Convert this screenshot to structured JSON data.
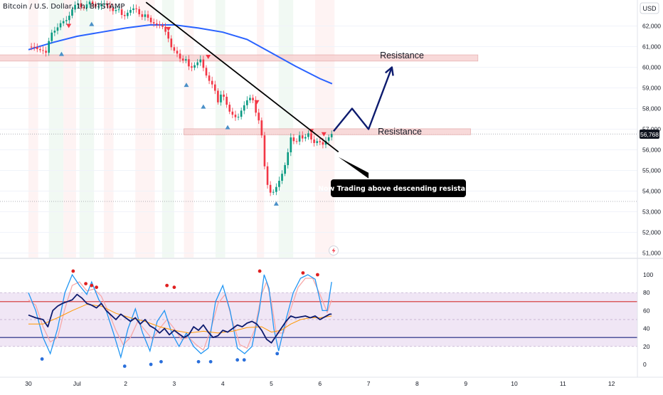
{
  "header": {
    "symbol_title": "Bitcoin / U.S. Dollar, 1h, BITSTAMP",
    "currency": "USD"
  },
  "annotations": {
    "resistance_upper": "Resistance",
    "resistance_lower": "Resistance",
    "callout": "Now Trading above descending resistance"
  },
  "colors": {
    "bull_candle": "#089981",
    "bear_candle": "#f23645",
    "ma_line": "#2962ff",
    "trendline": "#000000",
    "projection": "#0d1b6e",
    "zone_fill": "#f7d3d3",
    "rsi_line": "#0d1b6e",
    "rsi_ma": "#ff9800",
    "stoch_k": "#2196f3",
    "stoch_d": "#f7a8a8",
    "overbought_line": "#d32f2f",
    "oversold_line": "#1a237e",
    "band_fill": "#ece0f2",
    "price_label_bg": "#131722"
  },
  "chart_data": [
    {
      "type": "candlestick",
      "x_axis": {
        "tick_labels": [
          "30",
          "Jul",
          "2",
          "3",
          "4",
          "5",
          "6",
          "7",
          "8",
          "9",
          "10",
          "11",
          "12"
        ]
      },
      "y_axis": {
        "tick_labels": [
          "62,000",
          "61,000",
          "60,000",
          "59,000",
          "58,000",
          "57,000",
          "56,000",
          "55,000",
          "54,000",
          "53,000",
          "52,000",
          "51,000"
        ],
        "ylim": [
          50600,
          63300
        ]
      },
      "last_price": 56768,
      "last_price_label": "56,768",
      "close_path": [
        [
          0,
          61000
        ],
        [
          0.12,
          60980
        ],
        [
          0.2,
          60850
        ],
        [
          0.3,
          60800
        ],
        [
          0.36,
          60700
        ],
        [
          0.46,
          61650
        ],
        [
          0.56,
          61800
        ],
        [
          0.68,
          62200
        ],
        [
          0.8,
          62300
        ],
        [
          0.92,
          62900
        ],
        [
          1.0,
          63150
        ],
        [
          1.12,
          62800
        ],
        [
          1.25,
          63200
        ],
        [
          1.4,
          62900
        ],
        [
          1.55,
          63100
        ],
        [
          1.65,
          62950
        ],
        [
          1.75,
          62700
        ],
        [
          1.85,
          62850
        ],
        [
          1.95,
          62400
        ],
        [
          2.08,
          62750
        ],
        [
          2.2,
          62900
        ],
        [
          2.32,
          62400
        ],
        [
          2.42,
          62600
        ],
        [
          2.5,
          62200
        ],
        [
          2.6,
          62100
        ],
        [
          2.75,
          62000
        ],
        [
          2.85,
          61600
        ],
        [
          2.95,
          60900
        ],
        [
          3.05,
          60700
        ],
        [
          3.15,
          60300
        ],
        [
          3.25,
          60400
        ],
        [
          3.32,
          59900
        ],
        [
          3.42,
          60100
        ],
        [
          3.55,
          60400
        ],
        [
          3.62,
          59800
        ],
        [
          3.7,
          59400
        ],
        [
          3.82,
          59050
        ],
        [
          3.9,
          58300
        ],
        [
          3.98,
          58800
        ],
        [
          4.05,
          58400
        ],
        [
          4.12,
          57900
        ],
        [
          4.2,
          57700
        ],
        [
          4.3,
          57500
        ],
        [
          4.4,
          58000
        ],
        [
          4.5,
          58400
        ],
        [
          4.6,
          58600
        ],
        [
          4.68,
          57800
        ],
        [
          4.76,
          57300
        ],
        [
          4.82,
          56400
        ],
        [
          4.86,
          55200
        ],
        [
          4.92,
          54300
        ],
        [
          5.0,
          53800
        ],
        [
          5.1,
          54200
        ],
        [
          5.2,
          54700
        ],
        [
          5.3,
          55400
        ],
        [
          5.4,
          56600
        ],
        [
          5.5,
          56300
        ],
        [
          5.58,
          56700
        ],
        [
          5.66,
          56500
        ],
        [
          5.76,
          56800
        ],
        [
          5.86,
          56300
        ],
        [
          5.96,
          56450
        ],
        [
          6.06,
          56250
        ],
        [
          6.14,
          56500
        ],
        [
          6.24,
          56768
        ]
      ],
      "ma_series": [
        [
          0,
          60850
        ],
        [
          0.5,
          61200
        ],
        [
          1.0,
          61500
        ],
        [
          1.5,
          61700
        ],
        [
          2.0,
          61900
        ],
        [
          2.5,
          62050
        ],
        [
          3.0,
          62050
        ],
        [
          3.5,
          61900
        ],
        [
          4.0,
          61700
        ],
        [
          4.5,
          61350
        ],
        [
          5.0,
          60700
        ],
        [
          5.5,
          60050
        ],
        [
          6.0,
          59450
        ],
        [
          6.25,
          59200
        ]
      ],
      "resistance_zones": [
        {
          "x": [
            -0.6,
            9.25
          ],
          "y": [
            60300,
            60600
          ]
        },
        {
          "x": [
            3.2,
            9.1
          ],
          "y": [
            56730,
            57020
          ]
        }
      ],
      "trendline": {
        "from": [
          2.42,
          63150
        ],
        "to": [
          6.38,
          55900
        ]
      },
      "projection": [
        [
          6.28,
          56900
        ],
        [
          6.66,
          58000
        ],
        [
          7.0,
          57000
        ],
        [
          7.48,
          60000
        ]
      ],
      "callout_pointer": {
        "from": [
          6.38,
          55650
        ],
        "to": [
          7.0,
          54750
        ]
      },
      "sell_signals": [
        [
          0.83,
          62000
        ],
        [
          2.88,
          61850
        ],
        [
          3.7,
          60500
        ],
        [
          4.7,
          58300
        ],
        [
          5.82,
          56900
        ],
        [
          6.08,
          56750
        ]
      ],
      "buy_signals": [
        [
          0.68,
          60650
        ],
        [
          1.3,
          62100
        ],
        [
          3.25,
          59150
        ],
        [
          3.6,
          58100
        ],
        [
          4.1,
          57100
        ],
        [
          5.1,
          53400
        ]
      ]
    },
    {
      "type": "line",
      "name": "oscillator",
      "y_axis": {
        "tick_labels": [
          "100",
          "80",
          "60",
          "40",
          "20",
          "0"
        ],
        "ylim": [
          -7,
          112
        ]
      },
      "levels": {
        "band": [
          20,
          80
        ],
        "overbought": 70,
        "oversold": 30,
        "mid": 50
      },
      "rsi_series": [
        [
          0,
          55
        ],
        [
          0.15,
          52
        ],
        [
          0.3,
          50
        ],
        [
          0.4,
          42
        ],
        [
          0.5,
          60
        ],
        [
          0.6,
          65
        ],
        [
          0.7,
          68
        ],
        [
          0.8,
          70
        ],
        [
          0.9,
          72
        ],
        [
          1.0,
          78
        ],
        [
          1.1,
          74
        ],
        [
          1.2,
          68
        ],
        [
          1.3,
          66
        ],
        [
          1.4,
          63
        ],
        [
          1.5,
          68
        ],
        [
          1.6,
          60
        ],
        [
          1.7,
          55
        ],
        [
          1.8,
          50
        ],
        [
          1.9,
          56
        ],
        [
          2.0,
          52
        ],
        [
          2.1,
          48
        ],
        [
          2.2,
          52
        ],
        [
          2.3,
          45
        ],
        [
          2.4,
          50
        ],
        [
          2.5,
          43
        ],
        [
          2.6,
          40
        ],
        [
          2.7,
          35
        ],
        [
          2.8,
          40
        ],
        [
          2.9,
          33
        ],
        [
          3.0,
          38
        ],
        [
          3.1,
          34
        ],
        [
          3.2,
          30
        ],
        [
          3.3,
          33
        ],
        [
          3.4,
          42
        ],
        [
          3.5,
          38
        ],
        [
          3.6,
          44
        ],
        [
          3.7,
          36
        ],
        [
          3.8,
          30
        ],
        [
          3.9,
          32
        ],
        [
          4.0,
          38
        ],
        [
          4.1,
          36
        ],
        [
          4.2,
          40
        ],
        [
          4.3,
          44
        ],
        [
          4.4,
          42
        ],
        [
          4.5,
          46
        ],
        [
          4.6,
          48
        ],
        [
          4.7,
          45
        ],
        [
          4.8,
          38
        ],
        [
          4.9,
          28
        ],
        [
          5.0,
          24
        ],
        [
          5.1,
          32
        ],
        [
          5.2,
          40
        ],
        [
          5.3,
          48
        ],
        [
          5.4,
          54
        ],
        [
          5.5,
          52
        ],
        [
          5.6,
          53
        ],
        [
          5.7,
          54
        ],
        [
          5.8,
          52
        ],
        [
          5.9,
          54
        ],
        [
          6.0,
          50
        ],
        [
          6.1,
          53
        ],
        [
          6.2,
          56
        ],
        [
          6.24,
          56
        ]
      ],
      "rsi_ma_series": [
        [
          0,
          45
        ],
        [
          0.3,
          45
        ],
        [
          0.6,
          52
        ],
        [
          0.9,
          60
        ],
        [
          1.2,
          67
        ],
        [
          1.5,
          65
        ],
        [
          1.8,
          57
        ],
        [
          2.1,
          52
        ],
        [
          2.4,
          48
        ],
        [
          2.7,
          42
        ],
        [
          3.0,
          38
        ],
        [
          3.3,
          35
        ],
        [
          3.6,
          37
        ],
        [
          3.9,
          35
        ],
        [
          4.2,
          37
        ],
        [
          4.5,
          41
        ],
        [
          4.8,
          42
        ],
        [
          5.0,
          36
        ],
        [
          5.2,
          38
        ],
        [
          5.4,
          45
        ],
        [
          5.6,
          50
        ],
        [
          5.8,
          52
        ],
        [
          6.0,
          52
        ],
        [
          6.24,
          54
        ]
      ],
      "stoch_k_series": [
        [
          0,
          80
        ],
        [
          0.15,
          60
        ],
        [
          0.3,
          30
        ],
        [
          0.45,
          12
        ],
        [
          0.6,
          40
        ],
        [
          0.75,
          80
        ],
        [
          0.9,
          100
        ],
        [
          1.05,
          88
        ],
        [
          1.2,
          78
        ],
        [
          1.3,
          92
        ],
        [
          1.45,
          72
        ],
        [
          1.6,
          60
        ],
        [
          1.75,
          35
        ],
        [
          1.9,
          8
        ],
        [
          2.05,
          40
        ],
        [
          2.2,
          62
        ],
        [
          2.35,
          35
        ],
        [
          2.5,
          15
        ],
        [
          2.65,
          48
        ],
        [
          2.8,
          60
        ],
        [
          2.95,
          35
        ],
        [
          3.1,
          20
        ],
        [
          3.25,
          35
        ],
        [
          3.4,
          20
        ],
        [
          3.55,
          12
        ],
        [
          3.7,
          18
        ],
        [
          3.85,
          70
        ],
        [
          4.0,
          88
        ],
        [
          4.15,
          60
        ],
        [
          4.3,
          18
        ],
        [
          4.45,
          12
        ],
        [
          4.6,
          20
        ],
        [
          4.75,
          60
        ],
        [
          4.85,
          100
        ],
        [
          4.95,
          85
        ],
        [
          5.05,
          40
        ],
        [
          5.15,
          15
        ],
        [
          5.3,
          50
        ],
        [
          5.45,
          80
        ],
        [
          5.6,
          96
        ],
        [
          5.75,
          100
        ],
        [
          5.9,
          95
        ],
        [
          6.05,
          60
        ],
        [
          6.15,
          60
        ],
        [
          6.24,
          92
        ]
      ],
      "stoch_d_series": [
        [
          0,
          72
        ],
        [
          0.15,
          66
        ],
        [
          0.3,
          42
        ],
        [
          0.45,
          25
        ],
        [
          0.6,
          30
        ],
        [
          0.75,
          62
        ],
        [
          0.9,
          88
        ],
        [
          1.05,
          92
        ],
        [
          1.2,
          82
        ],
        [
          1.35,
          84
        ],
        [
          1.5,
          76
        ],
        [
          1.65,
          58
        ],
        [
          1.8,
          38
        ],
        [
          1.95,
          22
        ],
        [
          2.1,
          30
        ],
        [
          2.25,
          48
        ],
        [
          2.4,
          38
        ],
        [
          2.55,
          28
        ],
        [
          2.7,
          40
        ],
        [
          2.85,
          50
        ],
        [
          3.0,
          40
        ],
        [
          3.15,
          28
        ],
        [
          3.3,
          30
        ],
        [
          3.45,
          22
        ],
        [
          3.6,
          16
        ],
        [
          3.75,
          38
        ],
        [
          3.9,
          68
        ],
        [
          4.05,
          78
        ],
        [
          4.2,
          48
        ],
        [
          4.35,
          22
        ],
        [
          4.5,
          18
        ],
        [
          4.65,
          38
        ],
        [
          4.8,
          78
        ],
        [
          4.9,
          92
        ],
        [
          5.0,
          70
        ],
        [
          5.1,
          35
        ],
        [
          5.25,
          35
        ],
        [
          5.4,
          62
        ],
        [
          5.55,
          86
        ],
        [
          5.7,
          96
        ],
        [
          5.85,
          96
        ],
        [
          6.0,
          78
        ],
        [
          6.15,
          58
        ],
        [
          6.24,
          72
        ]
      ],
      "top_dots": [
        [
          0.92,
          104
        ],
        [
          1.18,
          90
        ],
        [
          1.3,
          88
        ],
        [
          1.4,
          86
        ],
        [
          2.85,
          88
        ],
        [
          3.0,
          86
        ],
        [
          4.76,
          104
        ],
        [
          5.65,
          102
        ],
        [
          5.95,
          100
        ]
      ],
      "bottom_dots": [
        [
          0.28,
          6
        ],
        [
          1.98,
          -2
        ],
        [
          2.52,
          0
        ],
        [
          2.73,
          3
        ],
        [
          3.5,
          3
        ],
        [
          3.75,
          3
        ],
        [
          4.3,
          5
        ],
        [
          4.44,
          5
        ],
        [
          5.12,
          12
        ]
      ]
    }
  ]
}
